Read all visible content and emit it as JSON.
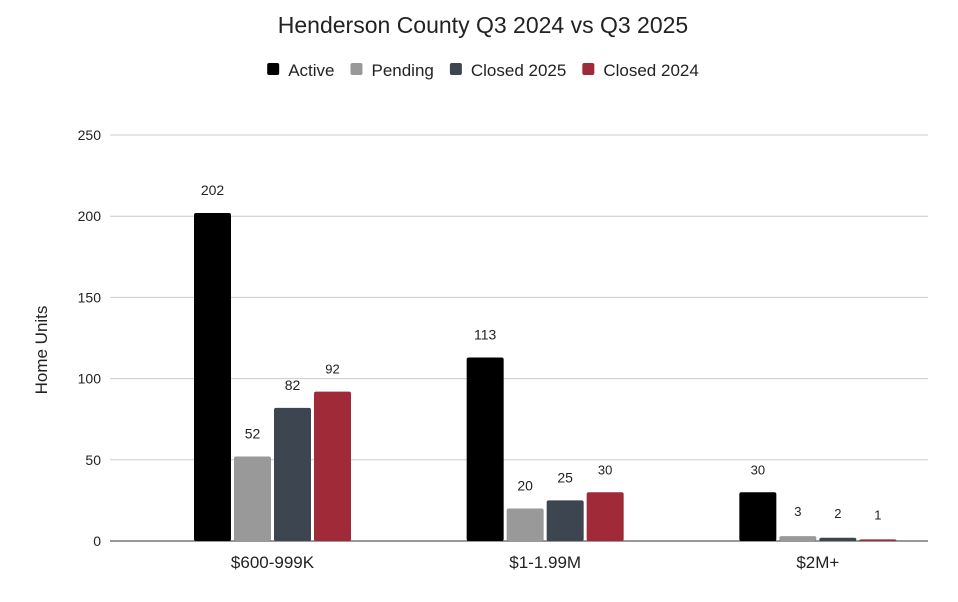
{
  "chart_data": {
    "type": "bar",
    "title": "Henderson County Q3 2024 vs Q3 2025",
    "xlabel": "",
    "ylabel": "Home Units",
    "ylim": [
      0,
      250
    ],
    "yticks": [
      "0",
      "50",
      "100",
      "150",
      "200",
      "250"
    ],
    "grid": true,
    "legend_position": "top",
    "categories": [
      "$600-999K",
      "$1-1.99M",
      "$2M+"
    ],
    "series": [
      {
        "name": "Active",
        "color": "#000000",
        "values": [
          202,
          113,
          30
        ]
      },
      {
        "name": "Pending",
        "color": "#999999",
        "values": [
          52,
          20,
          3
        ]
      },
      {
        "name": "Closed 2025",
        "color": "#3d4550",
        "values": [
          82,
          25,
          2
        ]
      },
      {
        "name": "Closed 2024",
        "color": "#a12a38",
        "values": [
          92,
          30,
          1
        ]
      }
    ],
    "data_labels": [
      [
        "202",
        "113",
        "30"
      ],
      [
        "52",
        "20",
        "3"
      ],
      [
        "82",
        "25",
        "2"
      ],
      [
        "92",
        "30",
        "1"
      ]
    ]
  }
}
